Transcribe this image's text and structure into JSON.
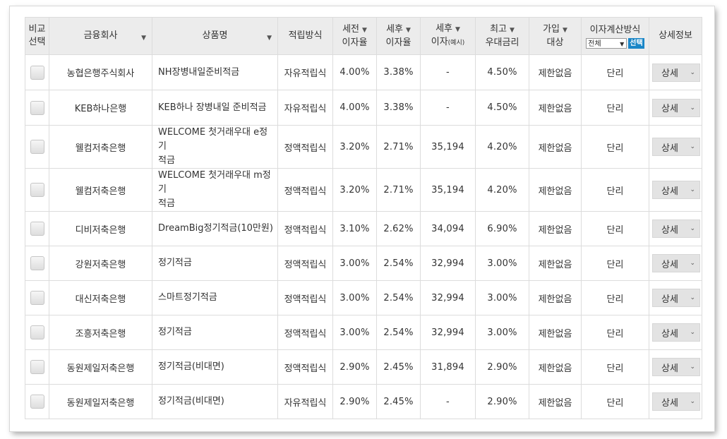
{
  "columns": {
    "compare": [
      "비교",
      "선택"
    ],
    "company": "금융회사",
    "product": "상품명",
    "method": "적립방식",
    "pretax": [
      "세전",
      "이자율"
    ],
    "posttax": [
      "세후",
      "이자율"
    ],
    "interest": [
      "세후",
      "이자",
      "(예시)"
    ],
    "max": [
      "최고",
      "우대금리"
    ],
    "eligibility": [
      "가입",
      "대상"
    ],
    "calc": "이자계산방식",
    "calc_select": "전체",
    "calc_button": "선택",
    "detail": "상세정보"
  },
  "arrow": "▼",
  "detail_label": "상세",
  "detail_chevron": "⌄",
  "rows": [
    {
      "company": "농협은행주식회사",
      "product": [
        "NH장병내일준비적금"
      ],
      "method": "자유적립식",
      "pretax": "4.00%",
      "posttax": "3.38%",
      "interest": "-",
      "max": "4.50%",
      "eligibility": "제한없음",
      "calc": "단리"
    },
    {
      "company": "KEB하나은행",
      "product": [
        "KEB하나 장병내일 준비적금"
      ],
      "method": "자유적립식",
      "pretax": "4.00%",
      "posttax": "3.38%",
      "interest": "-",
      "max": "4.50%",
      "eligibility": "제한없음",
      "calc": "단리"
    },
    {
      "company": "웰컴저축은행",
      "product": [
        "WELCOME 첫거래우대 e정기",
        "적금"
      ],
      "method": "정액적립식",
      "pretax": "3.20%",
      "posttax": "2.71%",
      "interest": "35,194",
      "max": "4.20%",
      "eligibility": "제한없음",
      "calc": "단리"
    },
    {
      "company": "웰컴저축은행",
      "product": [
        "WELCOME 첫거래우대 m정기",
        "적금"
      ],
      "method": "정액적립식",
      "pretax": "3.20%",
      "posttax": "2.71%",
      "interest": "35,194",
      "max": "4.20%",
      "eligibility": "제한없음",
      "calc": "단리"
    },
    {
      "company": "디비저축은행",
      "product": [
        "DreamBig정기적금(10만원)"
      ],
      "method": "정액적립식",
      "pretax": "3.10%",
      "posttax": "2.62%",
      "interest": "34,094",
      "max": "6.90%",
      "eligibility": "제한없음",
      "calc": "단리"
    },
    {
      "company": "강원저축은행",
      "product": [
        "정기적금"
      ],
      "method": "정액적립식",
      "pretax": "3.00%",
      "posttax": "2.54%",
      "interest": "32,994",
      "max": "3.00%",
      "eligibility": "제한없음",
      "calc": "단리"
    },
    {
      "company": "대신저축은행",
      "product": [
        "스마트정기적금"
      ],
      "method": "정액적립식",
      "pretax": "3.00%",
      "posttax": "2.54%",
      "interest": "32,994",
      "max": "3.00%",
      "eligibility": "제한없음",
      "calc": "단리"
    },
    {
      "company": "조흥저축은행",
      "product": [
        "정기적금"
      ],
      "method": "정액적립식",
      "pretax": "3.00%",
      "posttax": "2.54%",
      "interest": "32,994",
      "max": "3.00%",
      "eligibility": "제한없음",
      "calc": "단리"
    },
    {
      "company": "동원제일저축은행",
      "product": [
        "정기적금(비대면)"
      ],
      "method": "정액적립식",
      "pretax": "2.90%",
      "posttax": "2.45%",
      "interest": "31,894",
      "max": "2.90%",
      "eligibility": "제한없음",
      "calc": "단리"
    },
    {
      "company": "동원제일저축은행",
      "product": [
        "정기적금(비대면)"
      ],
      "method": "자유적립식",
      "pretax": "2.90%",
      "posttax": "2.45%",
      "interest": "-",
      "max": "2.90%",
      "eligibility": "제한없음",
      "calc": "단리"
    }
  ]
}
